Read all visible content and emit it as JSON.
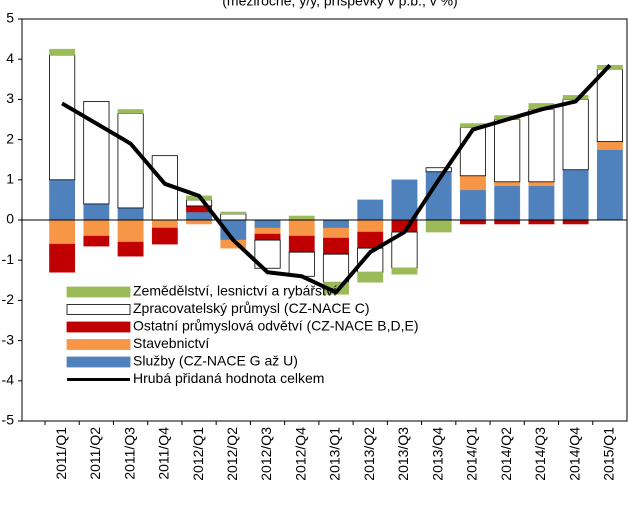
{
  "chart_data": {
    "type": "bar",
    "stacked": true,
    "title": "(meziročně, y/y, příspěvky v p.b., v %)",
    "categories": [
      "2011/Q1",
      "2011/Q2",
      "2011/Q3",
      "2011/Q4",
      "2012/Q1",
      "2012/Q2",
      "2012/Q3",
      "2012/Q4",
      "2013/Q1",
      "2013/Q2",
      "2013/Q3",
      "2013/Q4",
      "2014/Q1",
      "2014/Q2",
      "2014/Q3",
      "2014/Q4",
      "2015/Q1"
    ],
    "ylim": [
      -5,
      5
    ],
    "yticks": [
      -5,
      -4,
      -3,
      -2,
      -1,
      0,
      1,
      2,
      3,
      4,
      5
    ],
    "legend": "lower-left",
    "series": [
      {
        "name": "Služby (CZ-NACE G až U)",
        "color": "#4f81bd",
        "values": [
          1.0,
          0.4,
          0.3,
          0,
          0.2,
          -0.5,
          -0.2,
          0,
          -0.2,
          0.5,
          1.0,
          1.2,
          0.75,
          0.85,
          0.85,
          1.25,
          1.75
        ]
      },
      {
        "name": "Stavebnictví",
        "color": "#f79646",
        "values": [
          -0.6,
          -0.4,
          -0.55,
          -0.2,
          -0.1,
          -0.2,
          -0.15,
          -0.4,
          -0.25,
          -0.3,
          0,
          0,
          0.35,
          0.1,
          0.1,
          0,
          0.2
        ]
      },
      {
        "name": "Ostatní průmyslová odvětví (CZ-NACE B,D,E)",
        "color": "#c00000",
        "values": [
          -0.7,
          -0.25,
          -0.35,
          -0.4,
          0.15,
          0,
          -0.15,
          -0.4,
          -0.4,
          -0.4,
          -0.3,
          0,
          -0.1,
          -0.1,
          -0.1,
          -0.1,
          0
        ]
      },
      {
        "name": "Zpracovatelský průmysl (CZ-NACE C)",
        "color": "#ffffff",
        "values": [
          3.1,
          2.55,
          2.35,
          1.6,
          0.15,
          0.15,
          -0.7,
          -0.6,
          -0.7,
          -0.6,
          -0.9,
          0.1,
          1.2,
          1.55,
          1.8,
          1.75,
          1.8
        ]
      },
      {
        "name": "Zemědělství, lesnictví a rybářství",
        "color": "#9bbb59",
        "values": [
          0.15,
          0,
          0.1,
          0,
          0.1,
          0.05,
          0,
          0.1,
          -0.3,
          -0.25,
          -0.15,
          -0.3,
          0.1,
          0.1,
          0.15,
          0.1,
          0.1
        ]
      },
      {
        "name": "Hrubá přidaná hodnota celkem",
        "type": "line",
        "color": "#000000",
        "values": [
          2.9,
          2.4,
          1.9,
          0.9,
          0.6,
          -0.5,
          -1.3,
          -1.4,
          -1.8,
          -0.8,
          -0.3,
          1.0,
          2.25,
          2.5,
          2.75,
          2.95,
          3.85
        ]
      }
    ]
  }
}
